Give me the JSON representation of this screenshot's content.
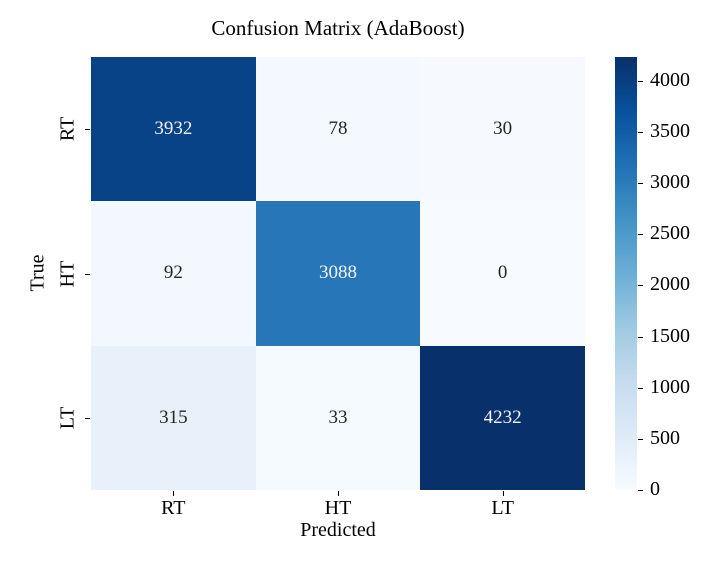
{
  "chart_data": {
    "type": "heatmap",
    "title": "Confusion Matrix (AdaBoost)",
    "xlabel": "Predicted",
    "ylabel": "True",
    "x_categories": [
      "RT",
      "HT",
      "LT"
    ],
    "y_categories": [
      "RT",
      "HT",
      "LT"
    ],
    "matrix": [
      [
        3932,
        78,
        30
      ],
      [
        92,
        3088,
        0
      ],
      [
        315,
        33,
        4232
      ]
    ],
    "colormap": "Blues",
    "vmin": 0,
    "vmax": 4232,
    "colorbar_ticks": [
      0,
      500,
      1000,
      1500,
      2000,
      2500,
      3000,
      3500,
      4000
    ],
    "colorbar_position": "right",
    "grid": false,
    "annotated": true
  },
  "colors": {
    "background": "#ffffff",
    "tick_color": "#000000",
    "annotation_dark": "#262626",
    "annotation_light": "#f2f6fb",
    "cmap_stops": [
      [
        0.0,
        "#f7fbff"
      ],
      [
        0.125,
        "#deebf7"
      ],
      [
        0.25,
        "#c6dbef"
      ],
      [
        0.375,
        "#9ecae1"
      ],
      [
        0.5,
        "#6baed6"
      ],
      [
        0.625,
        "#4292c6"
      ],
      [
        0.75,
        "#2171b5"
      ],
      [
        0.875,
        "#08519c"
      ],
      [
        1.0,
        "#08306b"
      ]
    ]
  }
}
